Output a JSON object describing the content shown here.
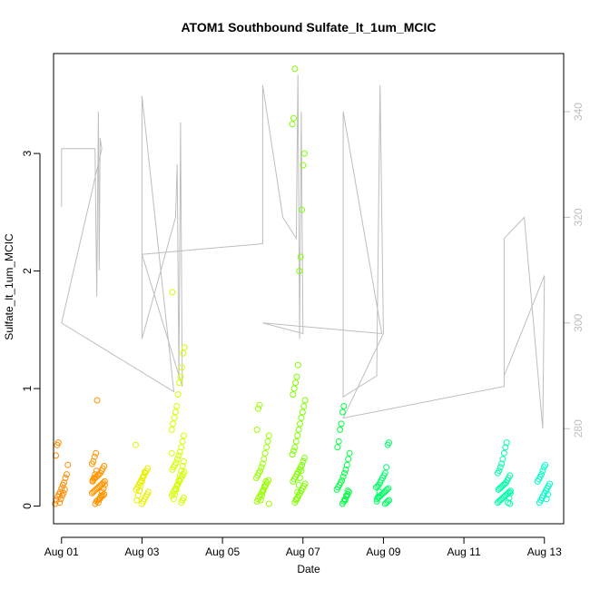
{
  "chart_data": {
    "type": "scatter",
    "title": "ATOM1 Southbound Sulfate_lt_1um_MCIC",
    "xlabel": "Date",
    "ylabel": "Sulfate_lt_1um_MCIC",
    "xlim": [
      "2016-07-31T19:15",
      "2016-08-13T11:30"
    ],
    "ylim": [
      -0.15,
      3.85
    ],
    "yticks": [
      0,
      1,
      2,
      3
    ],
    "xticks": [
      {
        "date": "2016-08-01",
        "label": "Aug 01"
      },
      {
        "date": "2016-08-03",
        "label": "Aug 03"
      },
      {
        "date": "2016-08-05",
        "label": "Aug 05"
      },
      {
        "date": "2016-08-07",
        "label": "Aug 07"
      },
      {
        "date": "2016-08-09",
        "label": "Aug 09"
      },
      {
        "date": "2016-08-11",
        "label": "Aug 11"
      },
      {
        "date": "2016-08-13",
        "label": "Aug 13"
      }
    ],
    "grid": false,
    "legend": "none",
    "point_style": "open-circle",
    "color_gradient": [
      "#ff8c00",
      "#ffa500",
      "#e8f000",
      "#d4ff00",
      "#9aff00",
      "#6cff00",
      "#00ff44",
      "#00ff80",
      "#00ffb4",
      "#00ffd0"
    ],
    "secondary_axis": {
      "side": "right",
      "series_type": "line",
      "color": "#bebebe",
      "ylim": [
        262,
        351
      ],
      "ticks": [
        280,
        300,
        320,
        340
      ]
    },
    "flight_clusters": [
      {
        "time": "2016-08-01T00:00",
        "color": "#ff8c00",
        "y": [
          0.02,
          0.05,
          0.08,
          0.1,
          0.12,
          0.15,
          0.18,
          0.2,
          0.24,
          0.27,
          0.35,
          0.43,
          0.52,
          0.54,
          0.03,
          0.06,
          0.09,
          0.11,
          0.14
        ]
      },
      {
        "time": "2016-08-01T22:00",
        "color": "#ff9500",
        "y": [
          0.02,
          0.04,
          0.05,
          0.06,
          0.07,
          0.08,
          0.09,
          0.1,
          0.11,
          0.12,
          0.13,
          0.14,
          0.15,
          0.16,
          0.17,
          0.18,
          0.19,
          0.2,
          0.21,
          0.22,
          0.23,
          0.24,
          0.25,
          0.26,
          0.27,
          0.28,
          0.3,
          0.32,
          0.34,
          0.36,
          0.38,
          0.42,
          0.45,
          0.9,
          0.03,
          0.06,
          0.09,
          0.12,
          0.15,
          0.18,
          0.21,
          0.24,
          0.27,
          0.3
        ]
      },
      {
        "time": "2016-08-03T00:00",
        "color": "#e8f000",
        "y": [
          0.02,
          0.04,
          0.06,
          0.08,
          0.1,
          0.12,
          0.14,
          0.16,
          0.18,
          0.2,
          0.22,
          0.24,
          0.26,
          0.28,
          0.3,
          0.32,
          0.52,
          0.05,
          0.09,
          0.13,
          0.17,
          0.21,
          0.25,
          0.29
        ]
      },
      {
        "time": "2016-08-03T21:30",
        "color": "#d4ff00",
        "y": [
          0.03,
          0.05,
          0.07,
          0.09,
          0.11,
          0.13,
          0.15,
          0.17,
          0.19,
          0.21,
          0.23,
          0.25,
          0.27,
          0.29,
          0.31,
          0.33,
          0.35,
          0.37,
          0.4,
          0.43,
          0.46,
          0.5,
          0.55,
          0.6,
          0.65,
          0.7,
          0.75,
          0.8,
          0.85,
          0.95,
          1.05,
          1.1,
          1.18,
          1.3,
          1.35,
          1.82,
          0.06,
          0.1,
          0.14,
          0.18,
          0.22,
          0.26,
          0.3,
          0.34,
          0.38,
          0.45
        ]
      },
      {
        "time": "2016-08-06T00:00",
        "color": "#9aff00",
        "y": [
          0.02,
          0.04,
          0.06,
          0.08,
          0.1,
          0.12,
          0.14,
          0.16,
          0.18,
          0.2,
          0.22,
          0.24,
          0.26,
          0.28,
          0.3,
          0.33,
          0.36,
          0.4,
          0.45,
          0.5,
          0.55,
          0.6,
          0.65,
          0.83,
          0.86,
          0.05,
          0.09,
          0.13,
          0.17,
          0.21
        ]
      },
      {
        "time": "2016-08-06T21:30",
        "color": "#7fff00",
        "y": [
          0.03,
          0.05,
          0.07,
          0.09,
          0.11,
          0.13,
          0.15,
          0.17,
          0.19,
          0.21,
          0.23,
          0.25,
          0.27,
          0.29,
          0.31,
          0.33,
          0.35,
          0.38,
          0.41,
          0.44,
          0.47,
          0.5,
          0.55,
          0.6,
          0.65,
          0.7,
          0.75,
          0.8,
          0.85,
          0.9,
          0.95,
          1.0,
          1.05,
          1.1,
          1.2,
          2.0,
          2.12,
          2.52,
          2.9,
          3.0,
          3.25,
          3.3,
          3.72,
          0.06,
          0.12,
          0.18,
          0.24,
          0.3
        ]
      },
      {
        "time": "2016-08-08T00:00",
        "color": "#00ff44",
        "y": [
          0.02,
          0.04,
          0.06,
          0.08,
          0.1,
          0.12,
          0.14,
          0.16,
          0.18,
          0.2,
          0.22,
          0.25,
          0.28,
          0.31,
          0.35,
          0.4,
          0.45,
          0.5,
          0.55,
          0.65,
          0.7,
          0.8,
          0.85,
          0.05,
          0.09,
          0.13
        ]
      },
      {
        "time": "2016-08-08T23:30",
        "color": "#00ff66",
        "y": [
          0.02,
          0.03,
          0.04,
          0.05,
          0.06,
          0.07,
          0.08,
          0.09,
          0.1,
          0.11,
          0.12,
          0.13,
          0.14,
          0.15,
          0.16,
          0.17,
          0.18,
          0.2,
          0.22,
          0.24,
          0.26,
          0.28,
          0.33,
          0.52,
          0.54,
          0.04,
          0.08,
          0.12
        ]
      },
      {
        "time": "2016-08-12T00:00",
        "color": "#00ffaa",
        "y": [
          0.02,
          0.03,
          0.04,
          0.05,
          0.06,
          0.07,
          0.08,
          0.09,
          0.1,
          0.11,
          0.12,
          0.13,
          0.14,
          0.15,
          0.16,
          0.17,
          0.18,
          0.19,
          0.2,
          0.22,
          0.24,
          0.26,
          0.28,
          0.3,
          0.33,
          0.36,
          0.4,
          0.45,
          0.5,
          0.54,
          0.03,
          0.07,
          0.11
        ]
      },
      {
        "time": "2016-08-12T23:45",
        "color": "#00ffc8",
        "y": [
          0.03,
          0.05,
          0.07,
          0.09,
          0.11,
          0.13,
          0.15,
          0.17,
          0.19,
          0.21,
          0.23,
          0.25,
          0.27,
          0.3,
          0.33,
          0.35,
          0.06,
          0.1
        ]
      }
    ],
    "secondary_line": {
      "x": [
        "2016-08-01T00:00",
        "2016-08-01T00:00",
        "2016-08-01T20:00",
        "2016-08-01T21:00",
        "2016-08-01T22:00",
        "2016-08-01T22:30",
        "2016-08-01T23:00",
        "2016-08-02T00:00",
        "2016-08-01T00:00",
        "2016-08-03T19:00",
        "2016-08-03T00:00",
        "2016-08-03T00:00",
        "2016-08-03T20:00",
        "2016-08-03T21:00",
        "2016-08-03T22:00",
        "2016-08-03T23:00",
        "2016-08-04T00:00",
        "2016-08-03T00:00",
        "2016-08-06T00:00",
        "2016-08-06T00:00",
        "2016-08-06T12:00",
        "2016-08-06T20:00",
        "2016-08-06T21:00",
        "2016-08-06T22:00",
        "2016-08-06T23:00",
        "2016-08-07T00:00",
        "2016-08-06T00:00",
        "2016-08-08T23:00",
        "2016-08-08T00:00",
        "2016-08-08T00:00",
        "2016-08-08T20:00",
        "2016-08-08T22:00",
        "2016-08-09T00:00",
        "2016-08-08T00:00",
        "2016-08-12T00:00",
        "2016-08-12T00:00",
        "2016-08-12T12:00",
        "2016-08-12T23:00",
        "2016-08-13T00:00",
        "2016-08-12T00:00"
      ],
      "y": [
        322,
        333,
        333,
        305,
        340,
        310,
        335,
        333,
        300,
        287,
        343,
        297,
        320,
        330,
        290,
        338,
        288,
        313,
        315,
        345,
        320,
        316,
        347,
        297,
        340,
        298,
        300,
        298,
        340,
        286,
        290,
        345,
        298,
        282,
        288,
        316,
        320,
        280,
        309,
        290
      ]
    }
  }
}
